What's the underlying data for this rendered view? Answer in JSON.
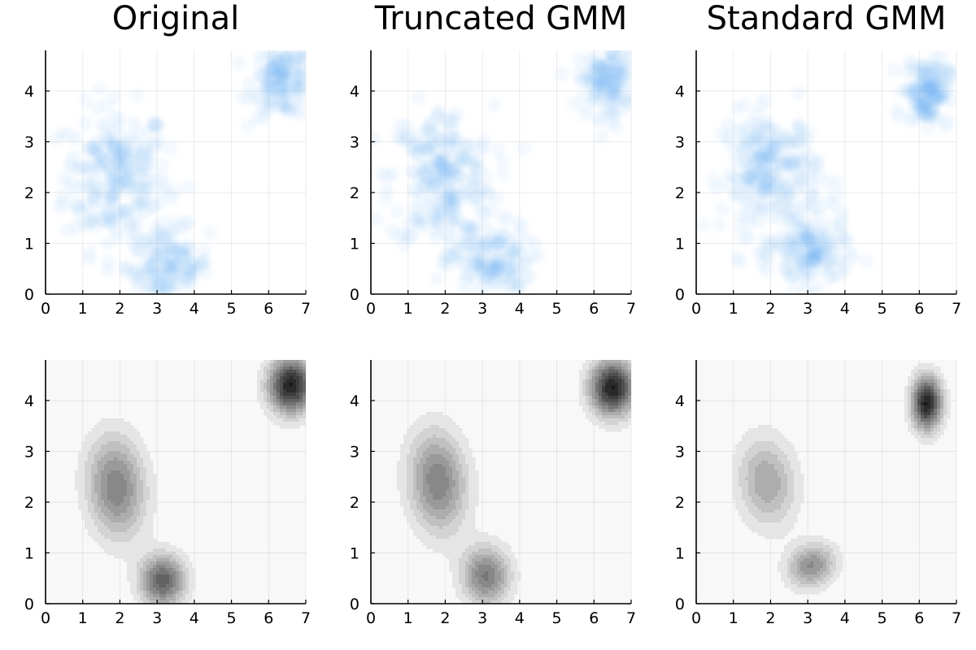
{
  "chart_data": [
    {
      "type": "scatter",
      "title": "Original",
      "xlim": [
        0,
        7
      ],
      "ylim": [
        0,
        4.8
      ],
      "xticks": [
        "0",
        "1",
        "2",
        "3",
        "4",
        "5",
        "6",
        "7"
      ],
      "yticks": [
        "0",
        "1",
        "2",
        "3",
        "4"
      ],
      "grid": true,
      "point_color": "#6aaaf5",
      "clusters": [
        {
          "mean": [
            1.9,
            2.3
          ],
          "sd": [
            0.7,
            0.7
          ],
          "count": 230
        },
        {
          "mean": [
            3.3,
            0.55
          ],
          "sd": [
            0.55,
            0.38
          ],
          "count": 140
        },
        {
          "mean": [
            6.4,
            4.2
          ],
          "sd": [
            0.42,
            0.35
          ],
          "count": 140
        }
      ]
    },
    {
      "type": "scatter",
      "title": "Truncated GMM",
      "xlim": [
        0,
        7
      ],
      "ylim": [
        0,
        4.8
      ],
      "xticks": [
        "0",
        "1",
        "2",
        "3",
        "4",
        "5",
        "6",
        "7"
      ],
      "yticks": [
        "0",
        "1",
        "2",
        "3",
        "4"
      ],
      "grid": true,
      "point_color": "#6aaaf5",
      "clusters": [
        {
          "mean": [
            1.9,
            2.3
          ],
          "sd": [
            0.7,
            0.7
          ],
          "count": 230
        },
        {
          "mean": [
            3.2,
            0.6
          ],
          "sd": [
            0.55,
            0.4
          ],
          "count": 140
        },
        {
          "mean": [
            6.4,
            4.2
          ],
          "sd": [
            0.42,
            0.35
          ],
          "count": 140
        }
      ]
    },
    {
      "type": "scatter",
      "title": "Standard GMM",
      "xlim": [
        0,
        7
      ],
      "ylim": [
        0,
        4.8
      ],
      "xticks": [
        "0",
        "1",
        "2",
        "3",
        "4",
        "5",
        "6",
        "7"
      ],
      "yticks": [
        "0",
        "1",
        "2",
        "3",
        "4"
      ],
      "grid": true,
      "point_color": "#6aaaf5",
      "clusters": [
        {
          "mean": [
            2.0,
            2.4
          ],
          "sd": [
            0.65,
            0.6
          ],
          "count": 230
        },
        {
          "mean": [
            3.1,
            0.8
          ],
          "sd": [
            0.5,
            0.35
          ],
          "count": 140
        },
        {
          "mean": [
            6.2,
            4.0
          ],
          "sd": [
            0.3,
            0.32
          ],
          "count": 140
        }
      ]
    },
    {
      "type": "heatmap",
      "subtype": "filled-contour",
      "xlim": [
        0,
        7
      ],
      "ylim": [
        0,
        4.8
      ],
      "xticks": [
        "0",
        "1",
        "2",
        "3",
        "4",
        "5",
        "6",
        "7"
      ],
      "yticks": [
        "0",
        "1",
        "2",
        "3",
        "4"
      ],
      "grid": true,
      "components": [
        {
          "mean": [
            1.9,
            2.3
          ],
          "sd": [
            0.55,
            0.7
          ],
          "rho": -0.1,
          "weight": 0.45
        },
        {
          "mean": [
            3.15,
            0.45
          ],
          "sd": [
            0.42,
            0.35
          ],
          "rho": 0.0,
          "weight": 0.22
        },
        {
          "mean": [
            6.6,
            4.3
          ],
          "sd": [
            0.42,
            0.38
          ],
          "rho": 0.0,
          "weight": 0.33
        }
      ],
      "levels": 12
    },
    {
      "type": "heatmap",
      "subtype": "filled-contour",
      "xlim": [
        0,
        7
      ],
      "ylim": [
        0,
        4.8
      ],
      "xticks": [
        "0",
        "1",
        "2",
        "3",
        "4",
        "5",
        "6",
        "7"
      ],
      "yticks": [
        "0",
        "1",
        "2",
        "3",
        "4"
      ],
      "grid": true,
      "components": [
        {
          "mean": [
            1.8,
            2.4
          ],
          "sd": [
            0.55,
            0.7
          ],
          "rho": -0.1,
          "weight": 0.45
        },
        {
          "mean": [
            3.1,
            0.55
          ],
          "sd": [
            0.45,
            0.4
          ],
          "rho": 0.0,
          "weight": 0.22
        },
        {
          "mean": [
            6.5,
            4.25
          ],
          "sd": [
            0.42,
            0.38
          ],
          "rho": 0.0,
          "weight": 0.33
        }
      ],
      "levels": 12
    },
    {
      "type": "heatmap",
      "subtype": "filled-contour",
      "xlim": [
        0,
        7
      ],
      "ylim": [
        0,
        4.8
      ],
      "xticks": [
        "0",
        "1",
        "2",
        "3",
        "4",
        "5",
        "6",
        "7"
      ],
      "yticks": [
        "0",
        "1",
        "2",
        "3",
        "4"
      ],
      "grid": true,
      "components": [
        {
          "mean": [
            1.9,
            2.4
          ],
          "sd": [
            0.55,
            0.62
          ],
          "rho": -0.1,
          "weight": 0.45
        },
        {
          "mean": [
            3.1,
            0.75
          ],
          "sd": [
            0.45,
            0.3
          ],
          "rho": 0.15,
          "weight": 0.22
        },
        {
          "mean": [
            6.2,
            3.95
          ],
          "sd": [
            0.28,
            0.36
          ],
          "rho": 0.0,
          "weight": 0.33
        }
      ],
      "levels": 12
    }
  ]
}
